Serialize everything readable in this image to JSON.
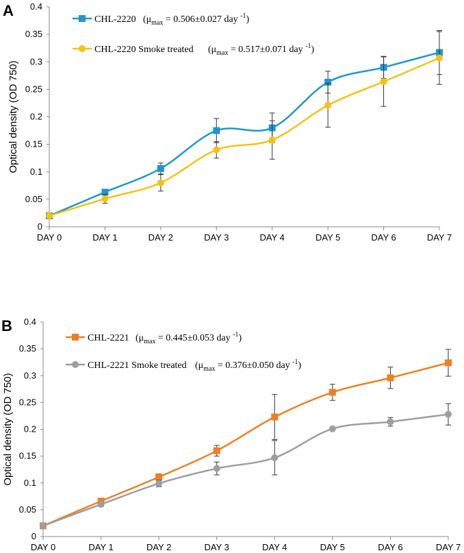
{
  "chart_data": [
    {
      "type": "line",
      "panel_label": "A",
      "categories": [
        "DAY 0",
        "DAY 1",
        "DAY 2",
        "DAY 3",
        "DAY 4",
        "DAY 5",
        "DAY 6",
        "DAY 7"
      ],
      "ylabel": "Optical density (OD 750)",
      "xlabel": "",
      "ylim": [
        0,
        0.4
      ],
      "yticks": [
        "0",
        "0.05",
        "0.1",
        "0.15",
        "0.2",
        "0.25",
        "0.3",
        "0.35",
        "0.4"
      ],
      "grid": false,
      "legend_position": "top-left",
      "series": [
        {
          "name": "CHL-2220",
          "legend_mu": "μ",
          "legend_sub": "max",
          "legend_eq": " = 0.506±0.027 day ",
          "legend_sup": "-1",
          "legend_close": ")",
          "color": "#1f96d0",
          "marker": "square",
          "values": [
            0.02,
            0.063,
            0.106,
            0.175,
            0.18,
            0.263,
            0.29,
            0.317
          ],
          "errors": [
            0.003,
            0.003,
            0.01,
            0.022,
            0.027,
            0.02,
            0.02,
            0.04
          ]
        },
        {
          "name": "CHL-2220 Smoke treated",
          "legend_mu": "μ",
          "legend_sub": "max",
          "legend_eq": " = 0.517±0.071 day ",
          "legend_sup": "-1",
          "legend_close": ")",
          "color": "#f5c214",
          "marker": "circle",
          "values": [
            0.02,
            0.051,
            0.08,
            0.14,
            0.158,
            0.221,
            0.264,
            0.307
          ],
          "errors": [
            0.003,
            0.008,
            0.015,
            0.015,
            0.035,
            0.04,
            0.045,
            0.048
          ]
        }
      ]
    },
    {
      "type": "line",
      "panel_label": "B",
      "categories": [
        "DAY 0",
        "DAY 1",
        "DAY 2",
        "DAY 3",
        "DAY 4",
        "DAY 5",
        "DAY 6",
        "DAY 7"
      ],
      "ylabel": "Optical density (OD 750)",
      "xlabel": "",
      "ylim": [
        0,
        0.4
      ],
      "yticks": [
        "0",
        "0.05",
        "0.1",
        "0.15",
        "0.2",
        "0.25",
        "0.3",
        "0.35",
        "0.4"
      ],
      "grid": false,
      "legend_position": "top-left",
      "series": [
        {
          "name": "CHL-2221",
          "legend_mu": "μ",
          "legend_sub": "max",
          "legend_eq": " = 0.445±0.053 day ",
          "legend_sup": "-1",
          "legend_close": ")",
          "color": "#f07e23",
          "marker": "square",
          "values": [
            0.02,
            0.066,
            0.111,
            0.16,
            0.223,
            0.269,
            0.296,
            0.324
          ],
          "errors": [
            0.002,
            0.004,
            0.006,
            0.01,
            0.042,
            0.015,
            0.02,
            0.025
          ]
        },
        {
          "name": "CHL-2221 Smoke treated",
          "legend_mu": "μ",
          "legend_sub": "max",
          "legend_eq": " = 0.376±0.050 day ",
          "legend_sup": "-1",
          "legend_close": ")",
          "color": "#9e9e9e",
          "marker": "circle",
          "values": [
            0.02,
            0.06,
            0.099,
            0.127,
            0.147,
            0.201,
            0.214,
            0.228
          ],
          "errors": [
            0.002,
            0.004,
            0.006,
            0.012,
            0.032,
            0.003,
            0.008,
            0.02
          ]
        }
      ]
    }
  ]
}
